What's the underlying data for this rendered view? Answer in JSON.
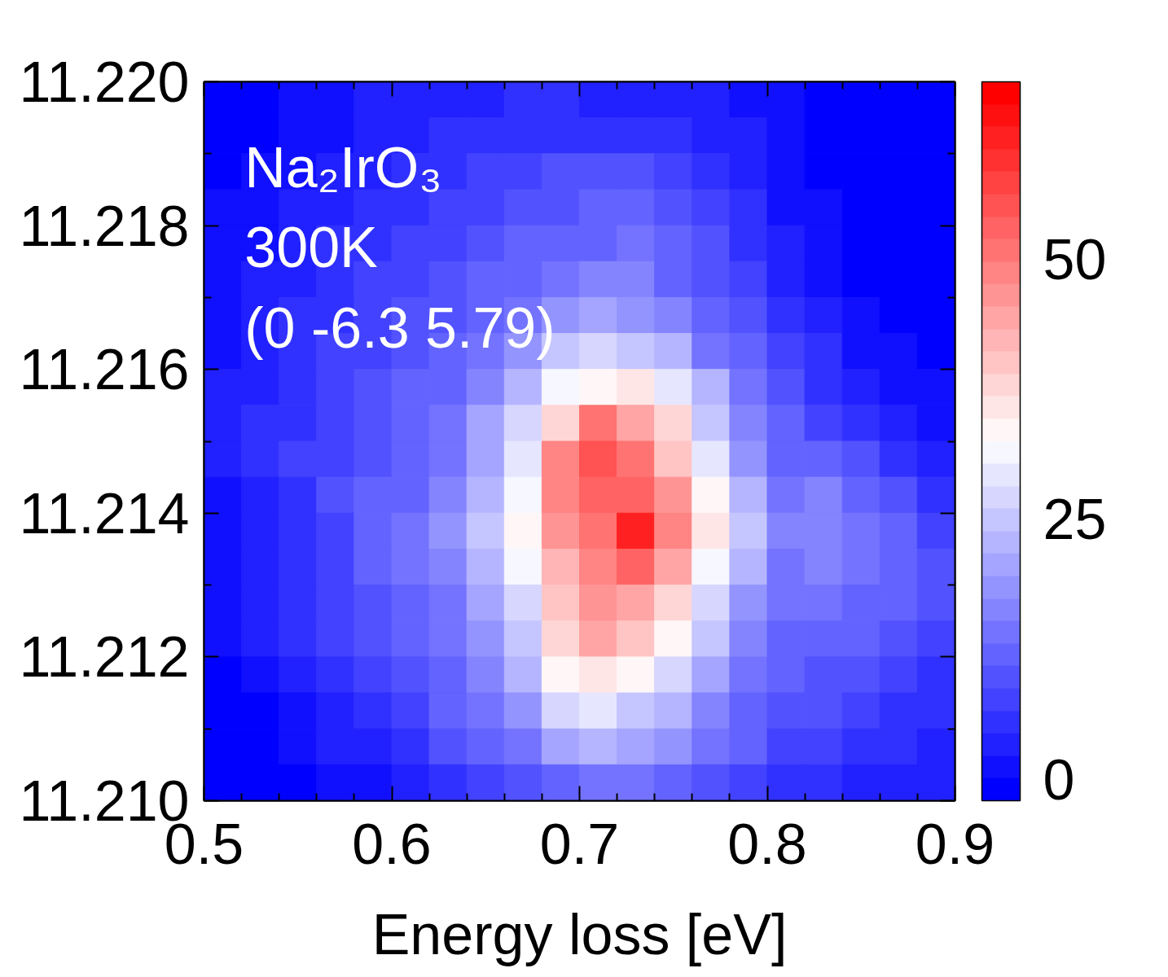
{
  "chart_data": {
    "type": "heatmap",
    "xlabel": "Energy loss [eV]",
    "annotations": [
      "Na₂IrO₃",
      "300K",
      "(0 -6.3 5.79)"
    ],
    "x": [
      0.51,
      0.53,
      0.55,
      0.57,
      0.59,
      0.61,
      0.63,
      0.65,
      0.67,
      0.69,
      0.71,
      0.73,
      0.75,
      0.77,
      0.79,
      0.81,
      0.83,
      0.85,
      0.87,
      0.89
    ],
    "cells": [
      [
        0,
        0,
        1,
        2,
        3,
        3,
        4,
        4,
        5,
        5,
        4,
        4,
        4,
        3,
        2,
        1,
        0,
        0,
        0,
        0
      ],
      [
        0,
        0,
        1,
        2,
        3,
        4,
        5,
        5,
        6,
        6,
        6,
        5,
        5,
        4,
        3,
        1,
        0,
        0,
        0,
        0
      ],
      [
        0,
        1,
        2,
        3,
        4,
        5,
        6,
        7,
        8,
        9,
        9,
        10,
        7,
        6,
        4,
        2,
        0,
        0,
        0,
        0
      ],
      [
        1,
        2,
        3,
        4,
        5,
        6,
        7,
        8,
        9,
        10,
        11,
        13,
        9,
        7,
        5,
        2,
        1,
        0,
        0,
        0
      ],
      [
        1,
        2,
        4,
        5,
        6,
        7,
        8,
        10,
        11,
        12,
        13,
        15,
        11,
        9,
        6,
        3,
        1,
        0,
        0,
        0
      ],
      [
        1,
        3,
        4,
        6,
        7,
        8,
        9,
        11,
        13,
        15,
        16,
        16,
        13,
        10,
        8,
        4,
        2,
        0,
        0,
        0
      ],
      [
        2,
        3,
        5,
        6,
        7,
        9,
        10,
        12,
        15,
        18,
        20,
        19,
        16,
        12,
        9,
        5,
        3,
        1,
        0,
        0
      ],
      [
        2,
        4,
        5,
        7,
        8,
        10,
        12,
        14,
        18,
        24,
        27,
        26,
        22,
        15,
        11,
        7,
        5,
        2,
        1,
        0
      ],
      [
        3,
        4,
        6,
        7,
        9,
        11,
        13,
        17,
        23,
        31,
        34,
        36,
        30,
        22,
        14,
        9,
        6,
        4,
        2,
        1
      ],
      [
        3,
        5,
        6,
        8,
        10,
        12,
        14,
        20,
        27,
        38,
        50,
        45,
        37,
        26,
        17,
        11,
        8,
        6,
        3,
        2
      ],
      [
        3,
        5,
        7,
        8,
        10,
        12,
        15,
        21,
        30,
        48,
        56,
        50,
        41,
        29,
        19,
        13,
        12,
        9,
        6,
        4
      ],
      [
        2,
        4,
        6,
        10,
        11,
        13,
        16,
        22,
        32,
        49,
        54,
        52,
        47,
        33,
        22,
        15,
        16,
        13,
        9,
        6
      ],
      [
        2,
        4,
        6,
        8,
        11,
        14,
        18,
        24,
        34,
        46,
        50,
        62,
        48,
        36,
        24,
        16,
        17,
        14,
        11,
        8
      ],
      [
        2,
        4,
        6,
        8,
        11,
        14,
        17,
        23,
        31,
        43,
        48,
        52,
        44,
        32,
        22,
        15,
        16,
        14,
        12,
        9
      ],
      [
        1,
        3,
        5,
        7,
        10,
        12,
        15,
        20,
        28,
        40,
        46,
        44,
        38,
        27,
        19,
        14,
        14,
        13,
        11,
        9
      ],
      [
        1,
        3,
        5,
        7,
        9,
        11,
        14,
        18,
        26,
        37,
        44,
        40,
        33,
        24,
        17,
        13,
        12,
        13,
        10,
        8
      ],
      [
        0,
        1,
        3,
        5,
        7,
        9,
        12,
        16,
        23,
        33,
        36,
        33,
        27,
        20,
        15,
        12,
        10,
        10,
        8,
        6
      ],
      [
        0,
        0,
        2,
        4,
        6,
        8,
        11,
        14,
        19,
        27,
        29,
        26,
        22,
        17,
        13,
        10,
        9,
        8,
        6,
        5
      ],
      [
        0,
        0,
        1,
        3,
        4,
        6,
        9,
        12,
        15,
        20,
        23,
        21,
        18,
        14,
        11,
        8,
        7,
        6,
        5,
        4
      ],
      [
        0,
        0,
        0,
        1,
        2,
        4,
        6,
        8,
        10,
        13,
        15,
        14,
        12,
        9,
        7,
        6,
        5,
        4,
        3,
        3
      ]
    ],
    "xlim": [
      0.5,
      0.9
    ],
    "ylim": [
      11.21,
      11.22
    ],
    "xticks": [
      0.5,
      {
        "value": 0.52,
        "label": null
      },
      {
        "value": 0.54,
        "label": null
      },
      {
        "value": 0.56,
        "label": null
      },
      {
        "value": 0.58,
        "label": null
      },
      0.6,
      {
        "value": 0.62,
        "label": null
      },
      {
        "value": 0.64,
        "label": null
      },
      {
        "value": 0.66,
        "label": null
      },
      {
        "value": 0.68,
        "label": null
      },
      0.7,
      {
        "value": 0.72,
        "label": null
      },
      {
        "value": 0.74,
        "label": null
      },
      {
        "value": 0.76,
        "label": null
      },
      {
        "value": 0.78,
        "label": null
      },
      0.8,
      {
        "value": 0.82,
        "label": null
      },
      {
        "value": 0.84,
        "label": null
      },
      {
        "value": 0.86,
        "label": null
      },
      {
        "value": 0.88,
        "label": null
      },
      0.9
    ],
    "yticks": [
      {
        "value": 11.21,
        "label": "11.210"
      },
      {
        "value": 11.211,
        "label": null
      },
      {
        "value": 11.212,
        "label": "11.212"
      },
      {
        "value": 11.213,
        "label": null
      },
      {
        "value": 11.214,
        "label": "11.214"
      },
      {
        "value": 11.215,
        "label": null
      },
      {
        "value": 11.216,
        "label": "11.216"
      },
      {
        "value": 11.217,
        "label": null
      },
      {
        "value": 11.218,
        "label": "11.218"
      },
      {
        "value": 11.219,
        "label": null
      },
      {
        "value": 11.22,
        "label": "11.220"
      }
    ],
    "clim": [
      -2,
      67
    ],
    "cticks": [
      0,
      25,
      50
    ]
  }
}
